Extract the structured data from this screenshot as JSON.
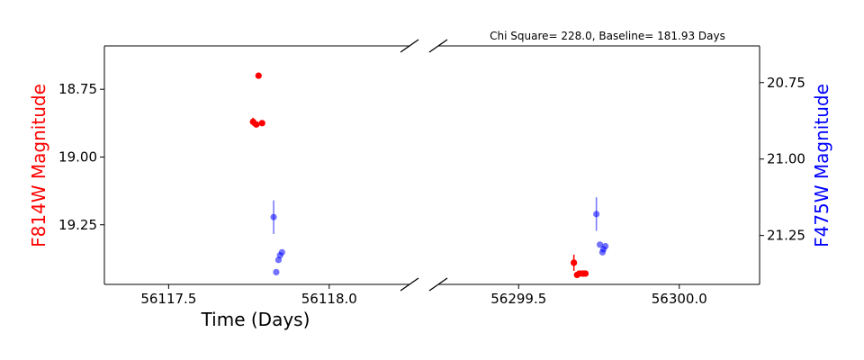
{
  "chart_data": {
    "type": "scatter",
    "title": "Chi Square= 228.0, Baseline= 181.93 Days",
    "xlabel": "Time (Days)",
    "ylabel_left": "F814W Magnitude",
    "ylabel_right": "F475W Magnitude",
    "colors": {
      "f814w": "#ff0000",
      "f475w": "#0000ff",
      "axis": "#000000"
    },
    "broken_x_axis": true,
    "left_panel": {
      "xlim": [
        56117.3,
        56118.25
      ],
      "x_ticks": [
        56117.5,
        56118.0
      ],
      "x_tick_labels": [
        "56117.5",
        "56118.0"
      ]
    },
    "right_panel": {
      "xlim": [
        56299.25,
        56300.25
      ],
      "x_ticks": [
        56299.5,
        56300.0
      ],
      "x_tick_labels": [
        "56299.5",
        "56300.0"
      ]
    },
    "y_left": {
      "lim": [
        19.47,
        18.59
      ],
      "ticks": [
        18.75,
        19.0,
        19.25
      ],
      "tick_labels": [
        "18.75",
        "19.00",
        "19.25"
      ]
    },
    "y_right": {
      "lim": [
        21.41,
        20.63
      ],
      "ticks": [
        20.75,
        21.0,
        21.25
      ],
      "tick_labels": [
        "20.75",
        "21.00",
        "21.25"
      ]
    },
    "series": [
      {
        "name": "F814W",
        "axis": "left",
        "color": "#ff0000",
        "alpha": 1.0,
        "points": [
          {
            "x": 56117.78,
            "y": 18.7,
            "err": 0.0
          },
          {
            "x": 56117.763,
            "y": 18.87,
            "err": 0.015
          },
          {
            "x": 56117.773,
            "y": 18.88,
            "err": 0.0
          },
          {
            "x": 56117.791,
            "y": 18.875,
            "err": 0.0
          },
          {
            "x": 56299.672,
            "y": 19.39,
            "err": 0.03
          },
          {
            "x": 56299.682,
            "y": 19.435,
            "err": 0.0
          },
          {
            "x": 56299.689,
            "y": 19.43,
            "err": 0.0
          },
          {
            "x": 56299.698,
            "y": 19.43,
            "err": 0.0
          },
          {
            "x": 56299.708,
            "y": 19.43,
            "err": 0.0
          },
          {
            "x": 56299.702,
            "y": 19.43,
            "err": 0.0
          }
        ]
      },
      {
        "name": "F475W",
        "axis": "right",
        "color": "#0000ff",
        "alpha": 0.55,
        "points": [
          {
            "x": 56117.827,
            "y": 21.19,
            "err": 0.055
          },
          {
            "x": 56117.835,
            "y": 21.37,
            "err": 0.0
          },
          {
            "x": 56117.842,
            "y": 21.33,
            "err": 0.0
          },
          {
            "x": 56117.847,
            "y": 21.315,
            "err": 0.0
          },
          {
            "x": 56117.853,
            "y": 21.305,
            "err": 0.0
          },
          {
            "x": 56299.742,
            "y": 21.18,
            "err": 0.055
          },
          {
            "x": 56299.753,
            "y": 21.28,
            "err": 0.0
          },
          {
            "x": 56299.761,
            "y": 21.305,
            "err": 0.0
          },
          {
            "x": 56299.764,
            "y": 21.295,
            "err": 0.0
          },
          {
            "x": 56299.77,
            "y": 21.285,
            "err": 0.0
          }
        ]
      }
    ]
  }
}
